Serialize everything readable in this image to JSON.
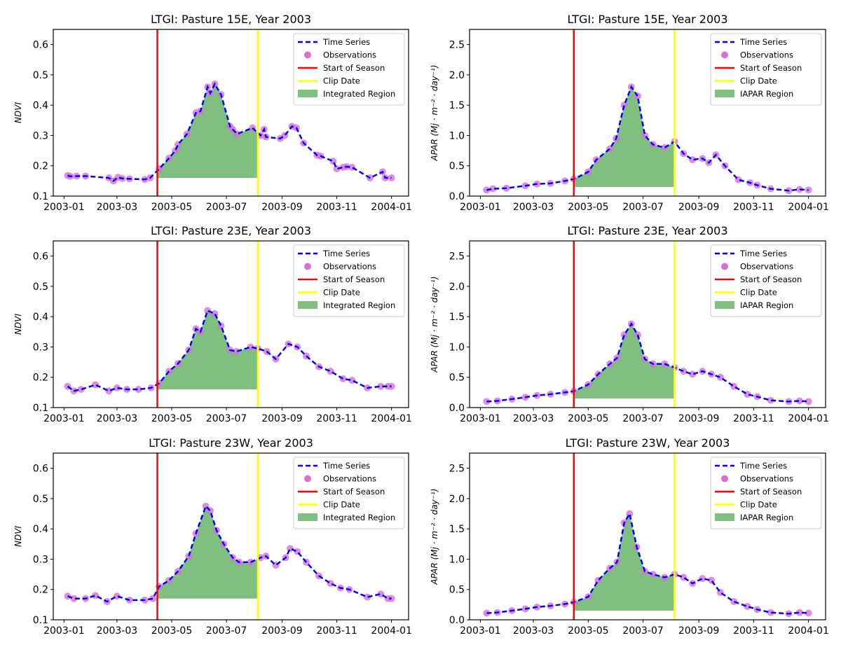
{
  "colors": {
    "series": "#0000ff",
    "observations": "#da70d6",
    "start": "#ff0000",
    "clip": "#ffff00",
    "region": "#7fbf7f"
  },
  "chart_data": [
    {
      "type": "line",
      "title": "LTGI: Pasture 15E, Year 2003",
      "ylabel": "NDVI",
      "ylim": [
        0.1,
        0.65
      ],
      "yticks": [
        "0.1",
        "0.2",
        "0.3",
        "0.4",
        "0.5",
        "0.6"
      ],
      "xticks": [
        "2003-01",
        "2003-03",
        "2003-05",
        "2003-07",
        "2003-09",
        "2003-11",
        "2004-01"
      ],
      "start_of_season": "2003-04-15",
      "clip_date": "2003-08-05",
      "region_baseline": 0.16,
      "legend": [
        "Time Series",
        "Observations",
        "Start of Season",
        "Clip Date",
        "Integrated Region"
      ],
      "legend_position": "upper right",
      "x": [
        "2003-01-05",
        "2003-01-08",
        "2003-01-15",
        "2003-01-25",
        "2003-02-20",
        "2003-02-25",
        "2003-03-02",
        "2003-03-07",
        "2003-03-15",
        "2003-04-01",
        "2003-04-07",
        "2003-04-17",
        "2003-04-28",
        "2003-05-05",
        "2003-05-08",
        "2003-05-18",
        "2003-05-28",
        "2003-06-02",
        "2003-06-10",
        "2003-06-13",
        "2003-06-18",
        "2003-06-25",
        "2003-07-05",
        "2003-07-08",
        "2003-07-13",
        "2003-07-30",
        "2003-08-08",
        "2003-08-12",
        "2003-08-14",
        "2003-08-30",
        "2003-09-04",
        "2003-09-12",
        "2003-09-17",
        "2003-09-25",
        "2003-10-10",
        "2003-10-14",
        "2003-10-28",
        "2003-11-01",
        "2003-11-08",
        "2003-11-12",
        "2003-11-18",
        "2003-12-08",
        "2003-12-22",
        "2003-12-25",
        "2004-01-01"
      ],
      "values": [
        0.168,
        0.165,
        0.166,
        0.166,
        0.16,
        0.15,
        0.162,
        0.158,
        0.157,
        0.155,
        0.16,
        0.19,
        0.225,
        0.25,
        0.27,
        0.305,
        0.375,
        0.38,
        0.46,
        0.44,
        0.47,
        0.435,
        0.33,
        0.32,
        0.305,
        0.325,
        0.3,
        0.32,
        0.295,
        0.29,
        0.3,
        0.33,
        0.325,
        0.275,
        0.235,
        0.232,
        0.215,
        0.19,
        0.195,
        0.197,
        0.195,
        0.16,
        0.18,
        0.16,
        0.16
      ]
    },
    {
      "type": "line",
      "title": "LTGI: Pasture 15E, Year 2003",
      "ylabel": "APAR (Mj · m⁻² · day⁻¹)",
      "ylim": [
        0,
        2.75
      ],
      "yticks": [
        "0.0",
        "0.5",
        "1.0",
        "1.5",
        "2.0",
        "2.5"
      ],
      "xticks": [
        "2003-01",
        "2003-03",
        "2003-05",
        "2003-07",
        "2003-09",
        "2003-11",
        "2004-01"
      ],
      "start_of_season": "2003-04-15",
      "clip_date": "2003-08-05",
      "region_baseline": 0.15,
      "legend": [
        "Time Series",
        "Observations",
        "Start of Season",
        "Clip Date",
        "IAPAR Region"
      ],
      "legend_position": "upper right",
      "x": [
        "2003-01-08",
        "2003-01-15",
        "2003-01-30",
        "2003-02-20",
        "2003-03-05",
        "2003-03-20",
        "2003-04-05",
        "2003-04-15",
        "2003-05-01",
        "2003-05-10",
        "2003-05-25",
        "2003-06-01",
        "2003-06-10",
        "2003-06-18",
        "2003-06-25",
        "2003-07-03",
        "2003-07-12",
        "2003-07-25",
        "2003-08-05",
        "2003-08-15",
        "2003-08-25",
        "2003-09-05",
        "2003-09-12",
        "2003-09-20",
        "2003-09-30",
        "2003-10-15",
        "2003-10-28",
        "2003-11-05",
        "2003-11-20",
        "2003-12-10",
        "2003-12-22",
        "2004-01-01"
      ],
      "values": [
        0.1,
        0.12,
        0.13,
        0.17,
        0.2,
        0.21,
        0.25,
        0.28,
        0.4,
        0.6,
        0.78,
        0.95,
        1.5,
        1.8,
        1.65,
        1.0,
        0.85,
        0.8,
        0.9,
        0.7,
        0.6,
        0.62,
        0.55,
        0.68,
        0.5,
        0.27,
        0.22,
        0.18,
        0.12,
        0.09,
        0.11,
        0.1
      ]
    },
    {
      "type": "line",
      "title": "LTGI: Pasture 23E, Year 2003",
      "ylabel": "NDVI",
      "ylim": [
        0.1,
        0.65
      ],
      "yticks": [
        "0.1",
        "0.2",
        "0.3",
        "0.4",
        "0.5",
        "0.6"
      ],
      "xticks": [
        "2003-01",
        "2003-03",
        "2003-05",
        "2003-07",
        "2003-09",
        "2003-11",
        "2004-01"
      ],
      "start_of_season": "2003-04-15",
      "clip_date": "2003-08-05",
      "region_baseline": 0.16,
      "legend": [
        "Time Series",
        "Observations",
        "Start of Season",
        "Clip Date",
        "Integrated Region"
      ],
      "legend_position": "upper right",
      "x": [
        "2003-01-05",
        "2003-01-12",
        "2003-01-20",
        "2003-02-05",
        "2003-02-20",
        "2003-03-01",
        "2003-03-12",
        "2003-03-25",
        "2003-04-08",
        "2003-04-17",
        "2003-04-28",
        "2003-05-08",
        "2003-05-20",
        "2003-05-28",
        "2003-06-02",
        "2003-06-10",
        "2003-06-18",
        "2003-06-25",
        "2003-07-05",
        "2003-07-12",
        "2003-07-28",
        "2003-08-05",
        "2003-08-15",
        "2003-08-25",
        "2003-09-08",
        "2003-09-18",
        "2003-09-28",
        "2003-10-12",
        "2003-10-25",
        "2003-11-08",
        "2003-11-18",
        "2003-12-05",
        "2003-12-20",
        "2003-12-28",
        "2004-01-01"
      ],
      "values": [
        0.17,
        0.155,
        0.16,
        0.175,
        0.155,
        0.165,
        0.16,
        0.16,
        0.165,
        0.18,
        0.22,
        0.245,
        0.29,
        0.36,
        0.35,
        0.42,
        0.41,
        0.37,
        0.29,
        0.285,
        0.3,
        0.295,
        0.285,
        0.26,
        0.31,
        0.3,
        0.27,
        0.235,
        0.22,
        0.195,
        0.19,
        0.165,
        0.17,
        0.17,
        0.17
      ]
    },
    {
      "type": "line",
      "title": "LTGI: Pasture 23E, Year 2003",
      "ylabel": "APAR (Mj · m⁻² · day⁻¹)",
      "ylim": [
        0,
        2.75
      ],
      "yticks": [
        "0.0",
        "0.5",
        "1.0",
        "1.5",
        "2.0",
        "2.5"
      ],
      "xticks": [
        "2003-01",
        "2003-03",
        "2003-05",
        "2003-07",
        "2003-09",
        "2003-11",
        "2004-01"
      ],
      "start_of_season": "2003-04-15",
      "clip_date": "2003-08-05",
      "region_baseline": 0.15,
      "legend": [
        "Time Series",
        "Observations",
        "Start of Season",
        "Clip Date",
        "IAPAR Region"
      ],
      "legend_position": "upper right",
      "x": [
        "2003-01-08",
        "2003-01-20",
        "2003-02-05",
        "2003-02-20",
        "2003-03-05",
        "2003-03-20",
        "2003-04-05",
        "2003-04-15",
        "2003-05-01",
        "2003-05-12",
        "2003-05-25",
        "2003-06-02",
        "2003-06-10",
        "2003-06-18",
        "2003-06-25",
        "2003-07-03",
        "2003-07-12",
        "2003-07-25",
        "2003-08-05",
        "2003-08-15",
        "2003-08-25",
        "2003-09-05",
        "2003-09-15",
        "2003-09-25",
        "2003-10-10",
        "2003-10-25",
        "2003-11-05",
        "2003-11-20",
        "2003-12-10",
        "2003-12-22",
        "2004-01-01"
      ],
      "values": [
        0.1,
        0.11,
        0.14,
        0.17,
        0.2,
        0.22,
        0.25,
        0.27,
        0.38,
        0.55,
        0.72,
        0.82,
        1.2,
        1.38,
        1.2,
        0.8,
        0.72,
        0.72,
        0.66,
        0.6,
        0.55,
        0.6,
        0.55,
        0.5,
        0.35,
        0.22,
        0.18,
        0.12,
        0.1,
        0.11,
        0.1
      ]
    },
    {
      "type": "line",
      "title": "LTGI: Pasture 23W, Year 2003",
      "ylabel": "NDVI",
      "ylim": [
        0.1,
        0.65
      ],
      "yticks": [
        "0.1",
        "0.2",
        "0.3",
        "0.4",
        "0.5",
        "0.6"
      ],
      "xticks": [
        "2003-01",
        "2003-03",
        "2003-05",
        "2003-07",
        "2003-09",
        "2003-11",
        "2004-01"
      ],
      "start_of_season": "2003-04-15",
      "clip_date": "2003-08-05",
      "region_baseline": 0.17,
      "legend": [
        "Time Series",
        "Observations",
        "Start of Season",
        "Clip Date",
        "Integrated Region"
      ],
      "legend_position": "upper right",
      "x": [
        "2003-01-05",
        "2003-01-12",
        "2003-01-25",
        "2003-02-05",
        "2003-02-18",
        "2003-03-01",
        "2003-03-15",
        "2003-04-01",
        "2003-04-10",
        "2003-04-17",
        "2003-04-28",
        "2003-05-08",
        "2003-05-20",
        "2003-05-28",
        "2003-06-08",
        "2003-06-13",
        "2003-06-20",
        "2003-06-28",
        "2003-07-08",
        "2003-07-15",
        "2003-07-28",
        "2003-08-08",
        "2003-08-14",
        "2003-08-25",
        "2003-09-05",
        "2003-09-10",
        "2003-09-18",
        "2003-09-28",
        "2003-10-12",
        "2003-10-25",
        "2003-11-05",
        "2003-11-15",
        "2003-12-05",
        "2003-12-20",
        "2003-12-28",
        "2004-01-01"
      ],
      "values": [
        0.178,
        0.17,
        0.17,
        0.18,
        0.16,
        0.178,
        0.165,
        0.165,
        0.17,
        0.21,
        0.23,
        0.26,
        0.31,
        0.385,
        0.475,
        0.46,
        0.395,
        0.35,
        0.305,
        0.29,
        0.29,
        0.305,
        0.31,
        0.28,
        0.305,
        0.335,
        0.325,
        0.29,
        0.245,
        0.22,
        0.205,
        0.2,
        0.175,
        0.185,
        0.17,
        0.17
      ]
    },
    {
      "type": "line",
      "title": "LTGI: Pasture 23W, Year 2003",
      "ylabel": "APAR (Mj · m⁻² · day⁻¹)",
      "ylim": [
        0,
        2.75
      ],
      "yticks": [
        "0.0",
        "0.5",
        "1.0",
        "1.5",
        "2.0",
        "2.5"
      ],
      "xticks": [
        "2003-01",
        "2003-03",
        "2003-05",
        "2003-07",
        "2003-09",
        "2003-11",
        "2004-01"
      ],
      "start_of_season": "2003-04-15",
      "clip_date": "2003-08-05",
      "region_baseline": 0.15,
      "legend": [
        "Time Series",
        "Observations",
        "Start of Season",
        "Clip Date",
        "IAPAR Region"
      ],
      "legend_position": "upper right",
      "x": [
        "2003-01-08",
        "2003-01-20",
        "2003-02-05",
        "2003-02-20",
        "2003-03-05",
        "2003-03-20",
        "2003-04-05",
        "2003-04-15",
        "2003-05-01",
        "2003-05-12",
        "2003-05-25",
        "2003-06-02",
        "2003-06-10",
        "2003-06-16",
        "2003-06-24",
        "2003-07-03",
        "2003-07-12",
        "2003-07-25",
        "2003-08-05",
        "2003-08-15",
        "2003-08-25",
        "2003-09-05",
        "2003-09-15",
        "2003-09-25",
        "2003-10-10",
        "2003-10-25",
        "2003-11-05",
        "2003-11-20",
        "2003-12-10",
        "2003-12-22",
        "2004-01-01"
      ],
      "values": [
        0.11,
        0.12,
        0.15,
        0.18,
        0.21,
        0.23,
        0.26,
        0.29,
        0.38,
        0.65,
        0.85,
        0.95,
        1.6,
        1.75,
        1.2,
        0.8,
        0.75,
        0.7,
        0.75,
        0.7,
        0.6,
        0.68,
        0.65,
        0.45,
        0.3,
        0.22,
        0.17,
        0.12,
        0.1,
        0.12,
        0.11
      ]
    }
  ]
}
